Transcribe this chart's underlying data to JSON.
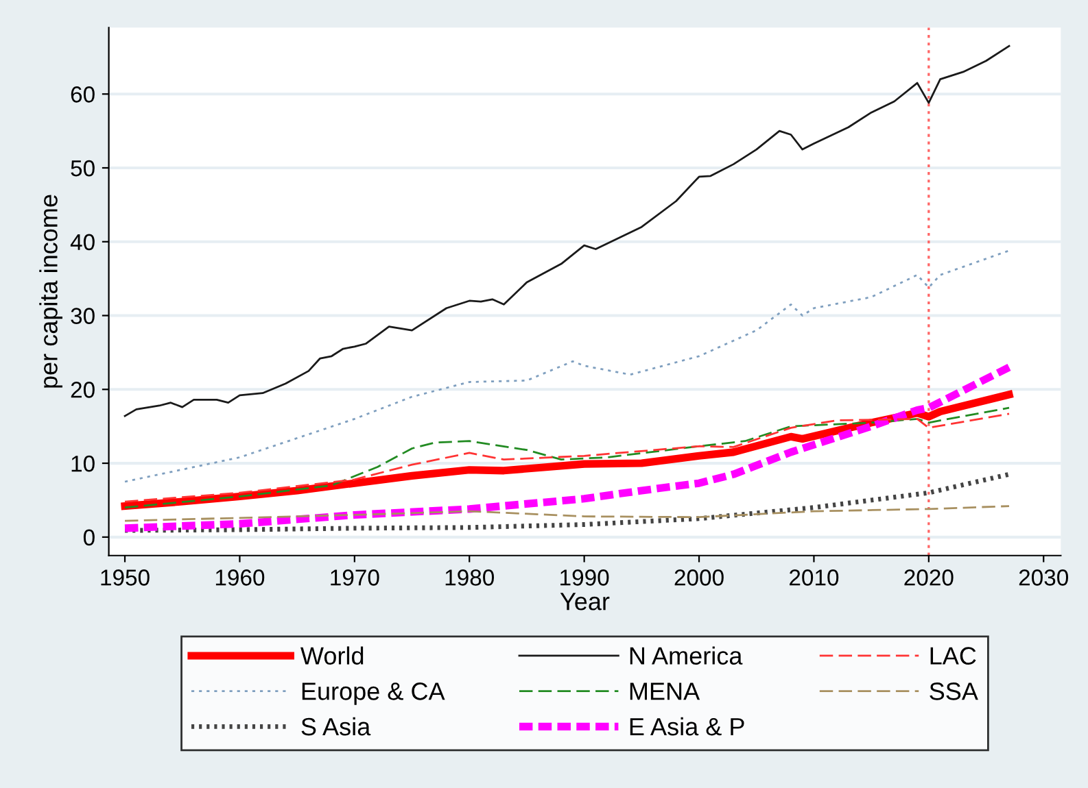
{
  "chart_data": {
    "type": "line",
    "xlabel": "Year",
    "ylabel": "per capita income",
    "xlim": [
      1948.6,
      2031.5
    ],
    "ylim": [
      -2.5,
      69
    ],
    "xticks": [
      1950,
      1960,
      1970,
      1980,
      1990,
      2000,
      2010,
      2020,
      2030
    ],
    "yticks": [
      0,
      10,
      20,
      30,
      40,
      50,
      60
    ],
    "grid": "y",
    "legend": "bottom",
    "ref_lines": [
      {
        "axis": "x",
        "value": 2020,
        "color": "#ff6666",
        "line_style": "dotted"
      }
    ],
    "series": [
      {
        "name": "World",
        "color": "#ff0000",
        "line_style": "solid",
        "x": [
          1950,
          1955,
          1960,
          1965,
          1970,
          1975,
          1980,
          1983,
          1990,
          1995,
          2000,
          2003,
          2008,
          2009,
          2015,
          2019,
          2020,
          2021,
          2027
        ],
        "values": [
          4.2,
          4.8,
          5.5,
          6.3,
          7.3,
          8.3,
          9.1,
          9.0,
          9.9,
          10,
          11,
          11.5,
          13.6,
          13.3,
          15.5,
          16.8,
          16.3,
          17,
          19.3
        ]
      },
      {
        "name": "Europe & CA",
        "color": "#7f9fbf",
        "line_style": "dotted",
        "x": [
          1950,
          1960,
          1970,
          1975,
          1980,
          1985,
          1989,
          1990,
          1994,
          2000,
          2005,
          2008,
          2009,
          2010,
          2015,
          2019,
          2020,
          2021,
          2027
        ],
        "values": [
          7.5,
          10.8,
          16,
          19,
          21,
          21.2,
          23.8,
          23.2,
          22,
          24.5,
          28,
          31.5,
          30,
          31,
          32.5,
          35.5,
          33.8,
          35.5,
          38.8
        ]
      },
      {
        "name": "S Asia",
        "color": "#444444",
        "line_style": "dotted",
        "x": [
          1950,
          1960,
          1970,
          1980,
          1990,
          2000,
          2010,
          2015,
          2020,
          2027
        ],
        "values": [
          0.9,
          1.0,
          1.2,
          1.3,
          1.7,
          2.5,
          4,
          5,
          6,
          8.5
        ]
      },
      {
        "name": "N America",
        "color": "#1a1a1a",
        "line_style": "solid",
        "x": [
          1950,
          1951,
          1953,
          1954,
          1955,
          1956,
          1958,
          1959,
          1960,
          1962,
          1964,
          1966,
          1967,
          1968,
          1969,
          1970,
          1971,
          1973,
          1975,
          1978,
          1980,
          1981,
          1982,
          1983,
          1985,
          1988,
          1990,
          1991,
          1995,
          1998,
          2000,
          2001,
          2003,
          2005,
          2007,
          2008,
          2009,
          2010,
          2013,
          2015,
          2017,
          2019,
          2020,
          2021,
          2023,
          2025,
          2027
        ],
        "values": [
          16.4,
          17.3,
          17.8,
          18.2,
          17.6,
          18.6,
          18.6,
          18.2,
          19.2,
          19.5,
          20.8,
          22.5,
          24.2,
          24.5,
          25.5,
          25.8,
          26.2,
          28.5,
          28,
          31,
          32,
          31.9,
          32.2,
          31.5,
          34.5,
          37,
          39.5,
          39,
          42,
          45.5,
          48.8,
          48.9,
          50.5,
          52.5,
          55,
          54.5,
          52.5,
          53.3,
          55.5,
          57.5,
          59,
          61.5,
          58.8,
          62,
          63,
          64.5,
          66.5
        ]
      },
      {
        "name": "MENA",
        "color": "#228b22",
        "line_style": "dashed",
        "x": [
          1950,
          1960,
          1968,
          1972,
          1975,
          1977,
          1980,
          1985,
          1988,
          1992,
          2000,
          2004,
          2008,
          2015,
          2019,
          2020,
          2027
        ],
        "values": [
          4,
          5.5,
          7,
          9.5,
          12,
          12.8,
          13,
          11.8,
          10.5,
          10.8,
          12.3,
          13,
          15,
          15.5,
          16,
          15.5,
          17.5
        ]
      },
      {
        "name": "E Asia & P",
        "color": "#ff00ff",
        "line_style": "dashed",
        "x": [
          1950,
          1960,
          1970,
          1980,
          1990,
          1995,
          2000,
          2003,
          2008,
          2015,
          2019,
          2020,
          2027
        ],
        "values": [
          1.2,
          1.8,
          3.0,
          3.8,
          5.2,
          6.3,
          7.3,
          8.5,
          11.5,
          15,
          17.2,
          17.5,
          23
        ]
      },
      {
        "name": "LAC",
        "color": "#ff3333",
        "line_style": "dashed",
        "x": [
          1950,
          1960,
          1970,
          1975,
          1980,
          1983,
          1990,
          2000,
          2003,
          2008,
          2012,
          2019,
          2020,
          2027
        ],
        "values": [
          4.8,
          6,
          7.8,
          9.8,
          11.4,
          10.5,
          11,
          12.3,
          12.2,
          14.8,
          15.8,
          16,
          14.8,
          16.7
        ]
      },
      {
        "name": "SSA",
        "color": "#a89060",
        "line_style": "dashed",
        "x": [
          1950,
          1960,
          1970,
          1980,
          1990,
          2000,
          2010,
          2020,
          2027
        ],
        "values": [
          2.2,
          2.6,
          3.0,
          3.5,
          2.8,
          2.7,
          3.5,
          3.8,
          4.2
        ]
      }
    ]
  }
}
